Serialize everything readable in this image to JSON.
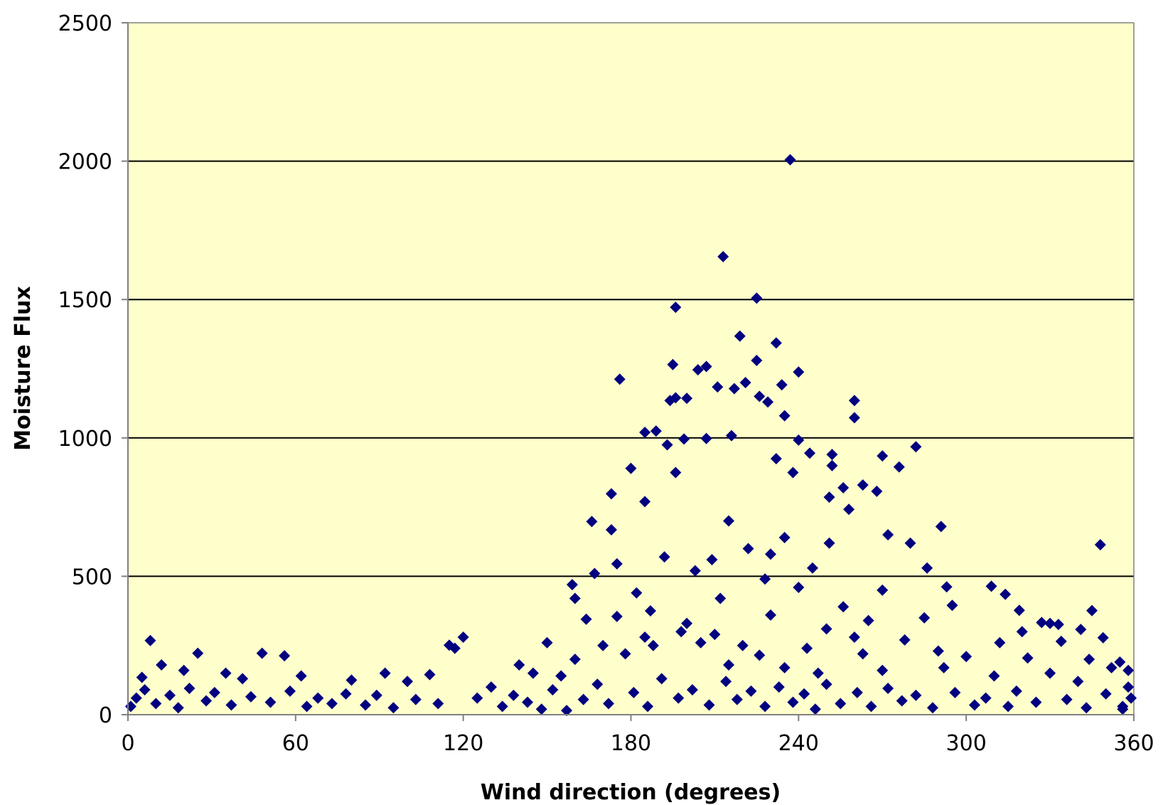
{
  "chart_data": {
    "type": "scatter",
    "title": "",
    "xlabel": "Wind direction (degrees)",
    "ylabel": "Moisture Flux",
    "xlim": [
      0,
      360
    ],
    "ylim": [
      0,
      2500
    ],
    "x_ticks": [
      0,
      60,
      120,
      180,
      240,
      300,
      360
    ],
    "y_ticks": [
      0,
      500,
      1000,
      1500,
      2000,
      2500
    ],
    "grid": "horizontal",
    "legend": "none",
    "colors": {
      "plot_background": "#FFFFCC",
      "marker": "#000080",
      "gridline": "#000000",
      "axis": "#808080"
    },
    "marker_shape": "diamond",
    "series": [
      {
        "points": [
          [
            237,
            2005
          ],
          [
            213,
            1655
          ],
          [
            225,
            1505
          ],
          [
            196,
            1472
          ],
          [
            219,
            1368
          ],
          [
            232,
            1343
          ],
          [
            225,
            1280
          ],
          [
            195,
            1265
          ],
          [
            207,
            1258
          ],
          [
            240,
            1238
          ],
          [
            204,
            1246
          ],
          [
            176,
            1212
          ],
          [
            221,
            1200
          ],
          [
            234,
            1192
          ],
          [
            211,
            1184
          ],
          [
            217,
            1178
          ],
          [
            226,
            1150
          ],
          [
            260,
            1135
          ],
          [
            196,
            1145
          ],
          [
            200,
            1143
          ],
          [
            194,
            1135
          ],
          [
            229,
            1130
          ],
          [
            260,
            1073
          ],
          [
            235,
            1080
          ],
          [
            189,
            1025
          ],
          [
            185,
            1020
          ],
          [
            216,
            1008
          ],
          [
            207,
            998
          ],
          [
            199,
            996
          ],
          [
            240,
            992
          ],
          [
            282,
            968
          ],
          [
            193,
            975
          ],
          [
            244,
            945
          ],
          [
            252,
            940
          ],
          [
            270,
            935
          ],
          [
            232,
            925
          ],
          [
            276,
            895
          ],
          [
            180,
            890
          ],
          [
            196,
            875
          ],
          [
            252,
            900
          ],
          [
            238,
            875
          ],
          [
            256,
            820
          ],
          [
            173,
            798
          ],
          [
            263,
            830
          ],
          [
            268,
            807
          ],
          [
            251,
            786
          ],
          [
            185,
            770
          ],
          [
            258,
            742
          ],
          [
            166,
            698
          ],
          [
            272,
            650
          ],
          [
            291,
            680
          ],
          [
            173,
            668
          ],
          [
            280,
            620
          ],
          [
            215,
            700
          ],
          [
            235,
            640
          ],
          [
            251,
            620
          ],
          [
            192,
            570
          ],
          [
            286,
            530
          ],
          [
            230,
            580
          ],
          [
            203,
            520
          ],
          [
            348,
            614
          ],
          [
            175,
            545
          ],
          [
            209,
            560
          ],
          [
            222,
            600
          ],
          [
            245,
            530
          ],
          [
            167,
            510
          ],
          [
            159,
            470
          ],
          [
            293,
            462
          ],
          [
            309,
            464
          ],
          [
            160,
            420
          ],
          [
            314,
            435
          ],
          [
            228,
            490
          ],
          [
            270,
            450
          ],
          [
            295,
            395
          ],
          [
            319,
            377
          ],
          [
            345,
            376
          ],
          [
            182,
            440
          ],
          [
            240,
            460
          ],
          [
            327,
            333
          ],
          [
            330,
            330
          ],
          [
            187,
            375
          ],
          [
            212,
            420
          ],
          [
            256,
            390
          ],
          [
            333,
            326
          ],
          [
            341,
            308
          ],
          [
            349,
            278
          ],
          [
            320,
            300
          ],
          [
            164,
            345
          ],
          [
            175,
            355
          ],
          [
            200,
            330
          ],
          [
            265,
            340
          ],
          [
            285,
            350
          ],
          [
            230,
            360
          ],
          [
            250,
            310
          ],
          [
            210,
            290
          ],
          [
            198,
            300
          ],
          [
            278,
            270
          ],
          [
            312,
            260
          ],
          [
            334,
            265
          ],
          [
            260,
            280
          ],
          [
            220,
            250
          ],
          [
            243,
            240
          ],
          [
            188,
            250
          ],
          [
            205,
            260
          ],
          [
            226,
            215
          ],
          [
            263,
            220
          ],
          [
            290,
            230
          ],
          [
            300,
            210
          ],
          [
            322,
            205
          ],
          [
            344,
            200
          ],
          [
            355,
            190
          ],
          [
            8,
            268
          ],
          [
            25,
            222
          ],
          [
            48,
            222
          ],
          [
            56,
            213
          ],
          [
            115,
            251
          ],
          [
            120,
            280
          ],
          [
            117,
            240
          ],
          [
            5,
            135
          ],
          [
            12,
            180
          ],
          [
            20,
            160
          ],
          [
            35,
            150
          ],
          [
            41,
            130
          ],
          [
            62,
            140
          ],
          [
            80,
            125
          ],
          [
            92,
            150
          ],
          [
            100,
            120
          ],
          [
            108,
            145
          ],
          [
            130,
            100
          ],
          [
            140,
            180
          ],
          [
            145,
            150
          ],
          [
            150,
            260
          ],
          [
            155,
            140
          ],
          [
            160,
            200
          ],
          [
            170,
            250
          ],
          [
            178,
            220
          ],
          [
            185,
            280
          ],
          [
            215,
            180
          ],
          [
            235,
            170
          ],
          [
            247,
            150
          ],
          [
            270,
            160
          ],
          [
            292,
            170
          ],
          [
            310,
            140
          ],
          [
            330,
            150
          ],
          [
            340,
            120
          ],
          [
            352,
            170
          ],
          [
            358,
            160
          ],
          [
            1,
            30
          ],
          [
            3,
            60
          ],
          [
            6,
            90
          ],
          [
            10,
            40
          ],
          [
            15,
            70
          ],
          [
            18,
            25
          ],
          [
            22,
            95
          ],
          [
            28,
            50
          ],
          [
            31,
            80
          ],
          [
            37,
            35
          ],
          [
            44,
            65
          ],
          [
            51,
            45
          ],
          [
            58,
            85
          ],
          [
            64,
            30
          ],
          [
            68,
            60
          ],
          [
            73,
            40
          ],
          [
            78,
            75
          ],
          [
            85,
            35
          ],
          [
            89,
            70
          ],
          [
            95,
            25
          ],
          [
            103,
            55
          ],
          [
            111,
            40
          ],
          [
            125,
            60
          ],
          [
            134,
            30
          ],
          [
            138,
            70
          ],
          [
            143,
            45
          ],
          [
            148,
            20
          ],
          [
            152,
            90
          ],
          [
            157,
            15
          ],
          [
            163,
            55
          ],
          [
            168,
            110
          ],
          [
            172,
            40
          ],
          [
            181,
            80
          ],
          [
            186,
            30
          ],
          [
            191,
            130
          ],
          [
            197,
            60
          ],
          [
            202,
            90
          ],
          [
            208,
            35
          ],
          [
            214,
            120
          ],
          [
            218,
            55
          ],
          [
            223,
            85
          ],
          [
            228,
            30
          ],
          [
            233,
            100
          ],
          [
            238,
            45
          ],
          [
            242,
            75
          ],
          [
            246,
            20
          ],
          [
            250,
            110
          ],
          [
            255,
            40
          ],
          [
            261,
            80
          ],
          [
            266,
            30
          ],
          [
            272,
            95
          ],
          [
            277,
            50
          ],
          [
            282,
            70
          ],
          [
            288,
            25
          ],
          [
            296,
            80
          ],
          [
            303,
            35
          ],
          [
            307,
            60
          ],
          [
            315,
            30
          ],
          [
            318,
            85
          ],
          [
            325,
            45
          ],
          [
            336,
            55
          ],
          [
            343,
            25
          ],
          [
            350,
            75
          ],
          [
            356,
            30
          ],
          [
            359,
            60
          ],
          [
            356,
            20
          ],
          [
            358,
            100
          ]
        ]
      }
    ]
  }
}
